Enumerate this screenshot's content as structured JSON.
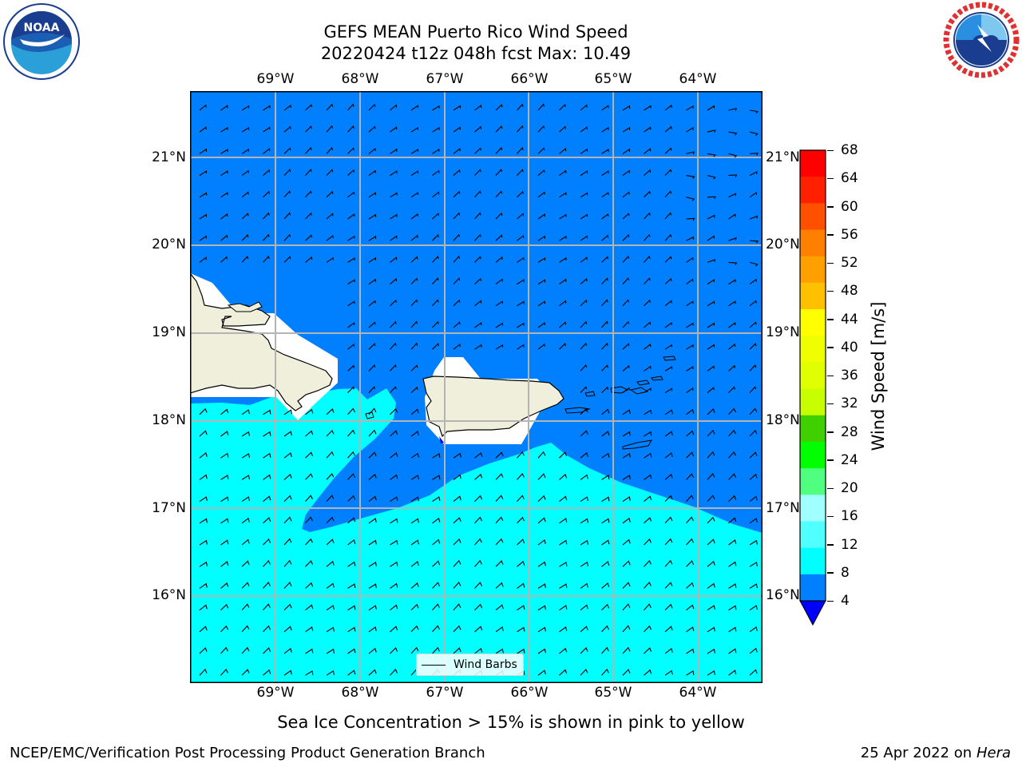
{
  "title": {
    "line1": "GEFS MEAN Puerto Rico Wind Speed",
    "line2": "20220424 t12z 048h fcst   Max: 10.49"
  },
  "logos": {
    "left": {
      "name": "noaa-logo",
      "text": "NOAA"
    },
    "right": {
      "name": "nws-logo"
    }
  },
  "map": {
    "lon_ticks": [
      "69°W",
      "68°W",
      "67°W",
      "66°W",
      "65°W",
      "64°W"
    ],
    "lat_ticks": [
      "21°N",
      "20°N",
      "19°N",
      "18°N",
      "17°N",
      "16°N"
    ],
    "extent": {
      "lon": [
        -69.97,
        -63.23
      ],
      "lat": [
        15.03,
        21.73
      ]
    },
    "ocean_colors": {
      "band_4_8": "#0080ff",
      "band_8_12": "#00ffff"
    },
    "land_color": "#efefdc",
    "gridlines": true,
    "legend": {
      "label": "Wind Barbs"
    }
  },
  "colorbar": {
    "label": "Wind Speed [m/s]",
    "ticks": [
      "68",
      "64",
      "60",
      "56",
      "52",
      "48",
      "44",
      "40",
      "36",
      "32",
      "28",
      "24",
      "20",
      "16",
      "12",
      "8",
      "4"
    ],
    "colors": [
      "#ff0000",
      "#ff2000",
      "#ff5000",
      "#ff8000",
      "#ffa000",
      "#ffc000",
      "#ffff00",
      "#f0ff00",
      "#e0ff00",
      "#c8ff00",
      "#40d000",
      "#00ff00",
      "#50ff80",
      "#a0ffff",
      "#50ffff",
      "#00ffff",
      "#0080ff"
    ],
    "extend_color": "#0000ff"
  },
  "note": "Sea Ice Concentration > 15% is shown in pink to yellow",
  "footer": {
    "left": "NCEP/EMC/Verification Post Processing Product Generation Branch",
    "right_prefix": "25 Apr 2022 on ",
    "right_machine": "Hera"
  }
}
